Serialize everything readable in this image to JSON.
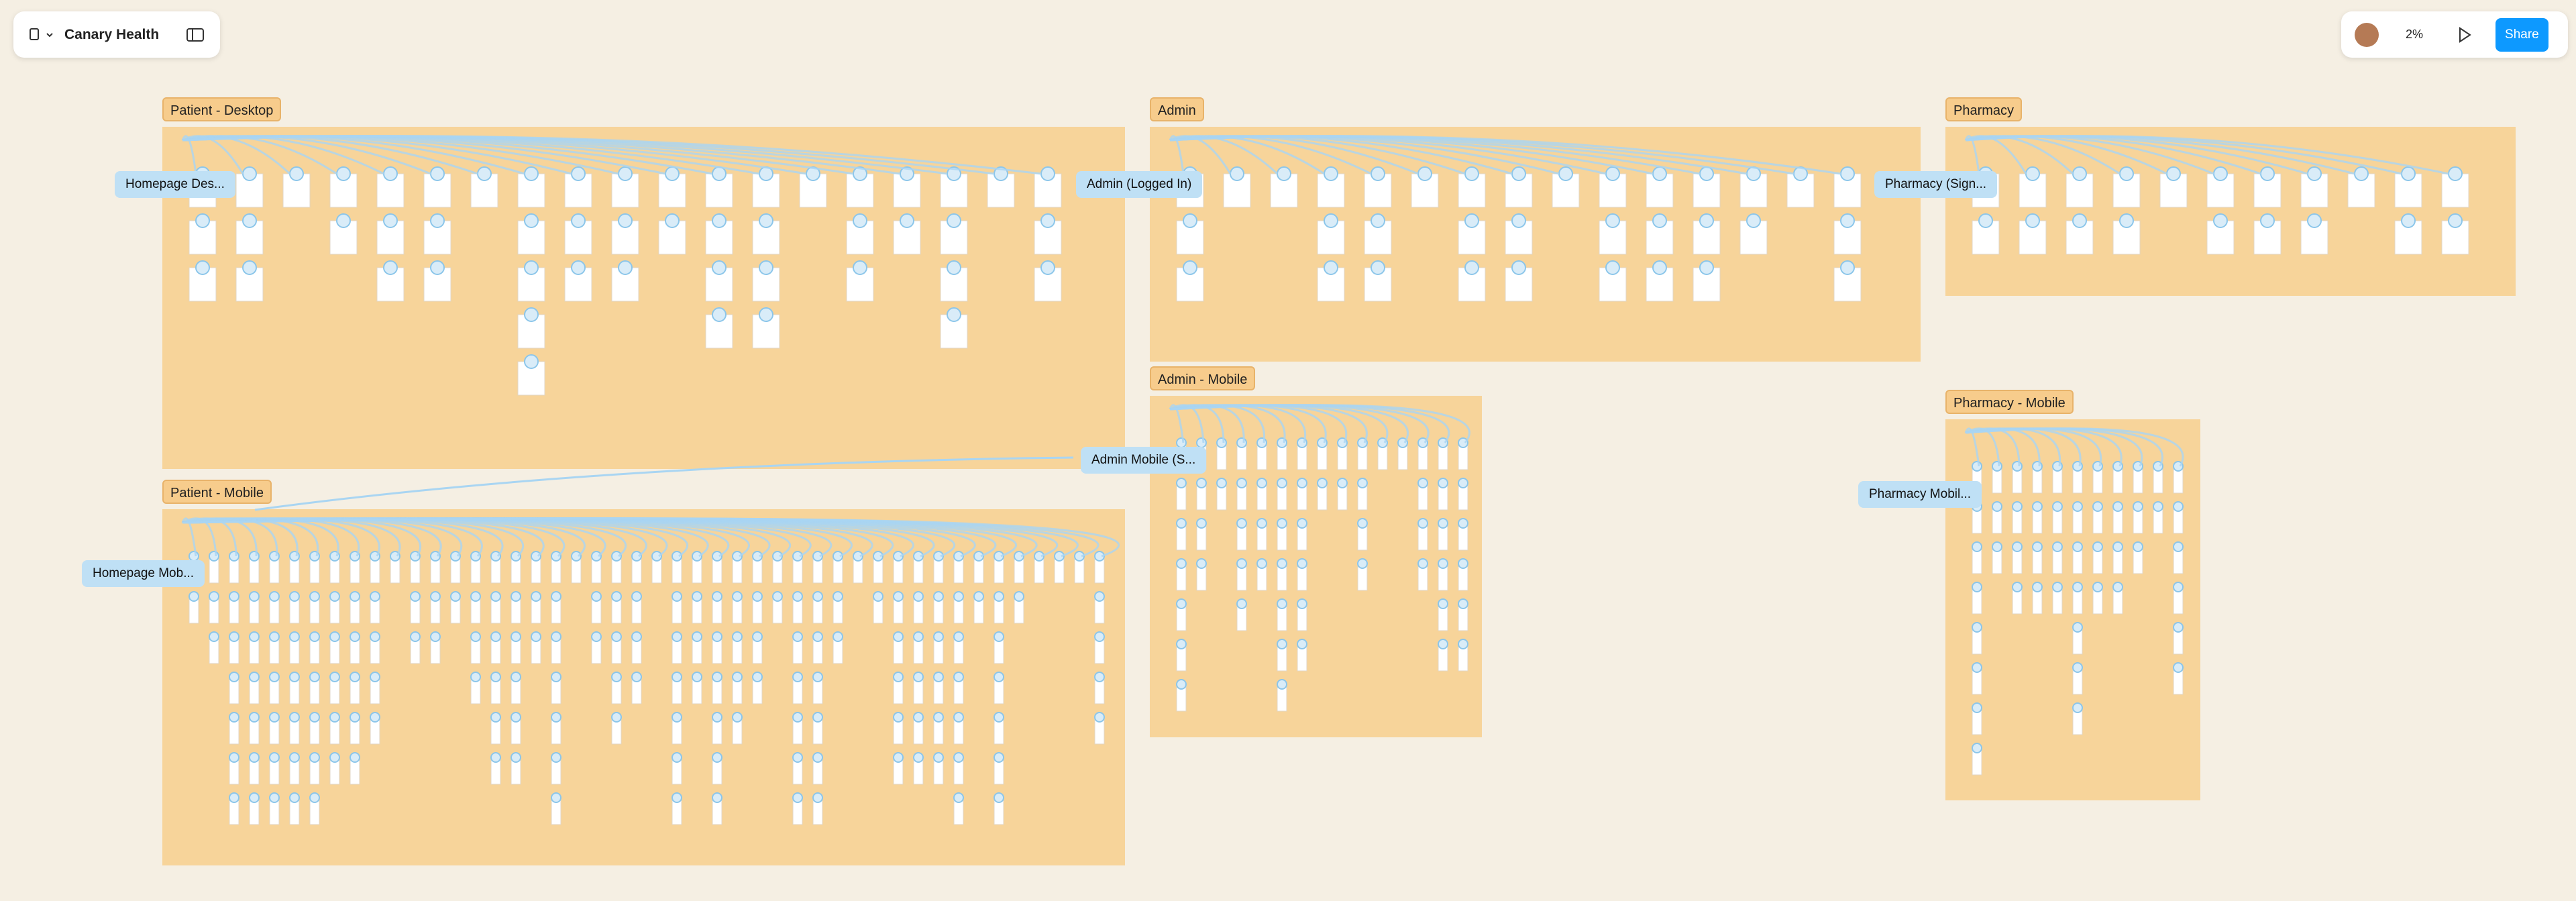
{
  "header": {
    "file_name": "Canary Health",
    "zoom": "2%",
    "share": "Share"
  },
  "sections": [
    {
      "label": "Patient - Desktop"
    },
    {
      "label": "Admin"
    },
    {
      "label": "Pharmacy"
    },
    {
      "label": "Admin - Mobile"
    },
    {
      "label": "Pharmacy - Mobile"
    },
    {
      "label": "Patient - Mobile"
    }
  ],
  "flows": [
    {
      "label": "Homepage Des..."
    },
    {
      "label": "Admin (Logged In)"
    },
    {
      "label": "Pharmacy (Sign..."
    },
    {
      "label": "Admin Mobile (S..."
    },
    {
      "label": "Pharmacy Mobil..."
    },
    {
      "label": "Homepage Mob..."
    }
  ]
}
